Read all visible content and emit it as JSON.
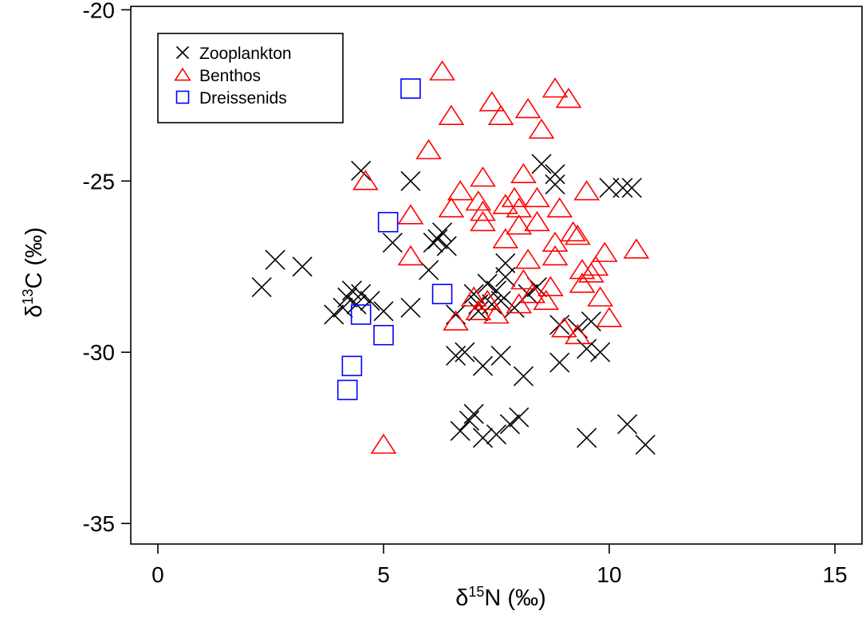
{
  "chart_data": {
    "type": "scatter",
    "xlabel": {
      "prefix": "δ",
      "sup": "15",
      "suffix": "N (‰)"
    },
    "ylabel": {
      "prefix": "δ",
      "sup": "13",
      "suffix": "C (‰)"
    },
    "xlim": [
      -0.6,
      15.6
    ],
    "ylim": [
      -35.6,
      -19.9
    ],
    "xticks": [
      0,
      5,
      10,
      15
    ],
    "yticks": [
      -20,
      -25,
      -30,
      -35
    ],
    "grid": false,
    "legend_position": "top-left",
    "series": [
      {
        "name": "Zooplankton",
        "marker": "x",
        "color": "#000000",
        "points": [
          [
            2.3,
            -28.1
          ],
          [
            2.6,
            -27.3
          ],
          [
            3.2,
            -27.5
          ],
          [
            3.9,
            -28.9
          ],
          [
            4.1,
            -28.7
          ],
          [
            4.2,
            -28.4
          ],
          [
            4.3,
            -28.2
          ],
          [
            4.4,
            -28.6
          ],
          [
            4.5,
            -28.3
          ],
          [
            4.7,
            -28.5
          ],
          [
            5.0,
            -28.8
          ],
          [
            4.5,
            -24.7
          ],
          [
            5.2,
            -26.8
          ],
          [
            5.6,
            -25.0
          ],
          [
            5.6,
            -28.7
          ],
          [
            6.0,
            -27.6
          ],
          [
            6.1,
            -26.8
          ],
          [
            6.2,
            -26.7
          ],
          [
            6.3,
            -26.5
          ],
          [
            6.4,
            -26.9
          ],
          [
            6.6,
            -28.9
          ],
          [
            6.6,
            -30.1
          ],
          [
            6.8,
            -30.0
          ],
          [
            6.7,
            -32.3
          ],
          [
            6.9,
            -32.0
          ],
          [
            7.0,
            -31.8
          ],
          [
            7.0,
            -28.3
          ],
          [
            7.1,
            -28.8
          ],
          [
            7.2,
            -30.4
          ],
          [
            7.2,
            -32.5
          ],
          [
            7.3,
            -28.0
          ],
          [
            7.4,
            -28.6
          ],
          [
            7.5,
            -28.2
          ],
          [
            7.5,
            -32.4
          ],
          [
            7.6,
            -30.1
          ],
          [
            7.6,
            -28.5
          ],
          [
            7.7,
            -27.4
          ],
          [
            7.7,
            -27.8
          ],
          [
            7.8,
            -32.1
          ],
          [
            7.9,
            -28.7
          ],
          [
            8.0,
            -31.9
          ],
          [
            8.1,
            -30.7
          ],
          [
            8.2,
            -28.3
          ],
          [
            8.4,
            -28.1
          ],
          [
            8.5,
            -24.5
          ],
          [
            8.8,
            -24.8
          ],
          [
            8.8,
            -25.1
          ],
          [
            8.9,
            -29.2
          ],
          [
            8.9,
            -30.3
          ],
          [
            9.3,
            -29.3
          ],
          [
            9.5,
            -29.9
          ],
          [
            9.6,
            -29.1
          ],
          [
            9.8,
            -30.0
          ],
          [
            9.5,
            -32.5
          ],
          [
            10.0,
            -25.2
          ],
          [
            10.3,
            -25.2
          ],
          [
            10.5,
            -25.2
          ],
          [
            10.4,
            -32.1
          ],
          [
            10.8,
            -32.7
          ],
          [
            7.1,
            -28.6
          ]
        ]
      },
      {
        "name": "Benthos",
        "marker": "triangle",
        "color": "#ff0000",
        "points": [
          [
            4.6,
            -25.0
          ],
          [
            5.0,
            -32.7
          ],
          [
            5.6,
            -26.0
          ],
          [
            5.6,
            -27.2
          ],
          [
            6.0,
            -24.1
          ],
          [
            6.3,
            -21.8
          ],
          [
            6.5,
            -23.1
          ],
          [
            6.5,
            -25.8
          ],
          [
            6.7,
            -25.3
          ],
          [
            6.6,
            -29.1
          ],
          [
            7.0,
            -28.4
          ],
          [
            7.1,
            -28.8
          ],
          [
            7.1,
            -25.6
          ],
          [
            7.2,
            -25.9
          ],
          [
            7.2,
            -26.2
          ],
          [
            7.2,
            -24.9
          ],
          [
            7.3,
            -28.5
          ],
          [
            7.4,
            -22.7
          ],
          [
            7.6,
            -23.1
          ],
          [
            7.7,
            -25.7
          ],
          [
            7.7,
            -26.7
          ],
          [
            7.9,
            -25.5
          ],
          [
            8.0,
            -25.8
          ],
          [
            8.0,
            -26.3
          ],
          [
            8.1,
            -24.8
          ],
          [
            8.1,
            -27.9
          ],
          [
            8.2,
            -22.9
          ],
          [
            8.2,
            -27.3
          ],
          [
            8.3,
            -28.3
          ],
          [
            8.4,
            -25.5
          ],
          [
            8.4,
            -26.2
          ],
          [
            8.5,
            -23.5
          ],
          [
            8.6,
            -28.5
          ],
          [
            8.7,
            -28.1
          ],
          [
            8.8,
            -26.8
          ],
          [
            8.8,
            -27.2
          ],
          [
            8.8,
            -22.3
          ],
          [
            8.9,
            -25.8
          ],
          [
            9.0,
            -29.3
          ],
          [
            9.1,
            -22.6
          ],
          [
            9.2,
            -26.5
          ],
          [
            9.3,
            -26.6
          ],
          [
            9.3,
            -29.5
          ],
          [
            9.4,
            -27.6
          ],
          [
            9.4,
            -28.0
          ],
          [
            9.5,
            -25.3
          ],
          [
            9.6,
            -27.7
          ],
          [
            9.7,
            -27.5
          ],
          [
            9.8,
            -28.4
          ],
          [
            9.9,
            -27.1
          ],
          [
            10.0,
            -29.0
          ],
          [
            10.6,
            -27.0
          ],
          [
            8.0,
            -28.6
          ],
          [
            7.5,
            -28.9
          ]
        ]
      },
      {
        "name": "Dreissenids",
        "marker": "square",
        "color": "#0000ff",
        "points": [
          [
            4.2,
            -31.1
          ],
          [
            4.3,
            -30.4
          ],
          [
            4.5,
            -28.9
          ],
          [
            5.0,
            -29.5
          ],
          [
            5.1,
            -26.2
          ],
          [
            5.6,
            -22.3
          ],
          [
            6.3,
            -28.3
          ]
        ]
      }
    ]
  }
}
